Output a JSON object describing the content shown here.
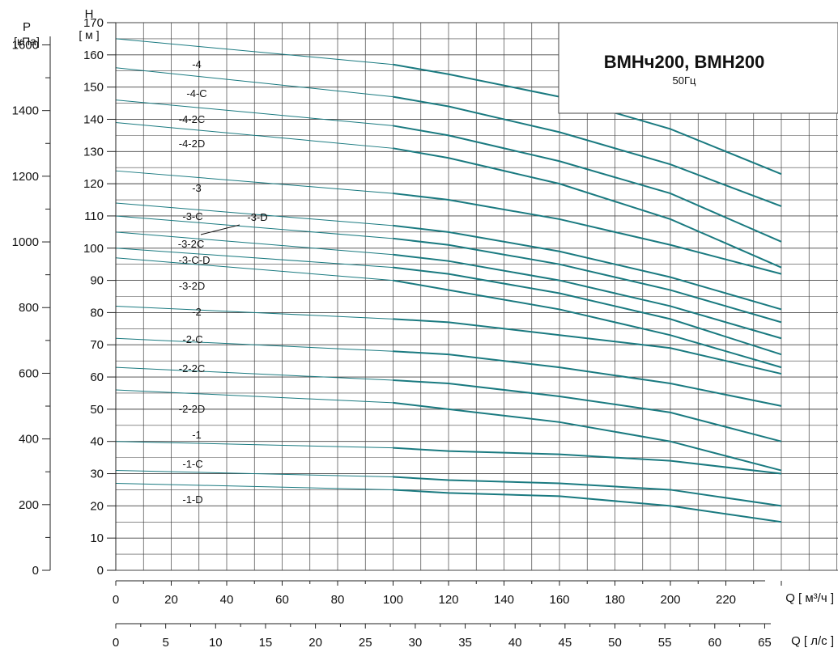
{
  "chart_data": {
    "type": "line",
    "title": "ВМНч200, ВМН200",
    "subtitle": "50Гц",
    "left_axis_symbol": "P",
    "left_axis_unit": "[кПа]",
    "y_axis_symbol": "H",
    "y_axis_unit": "[ м ]",
    "x_axis_symbol": "Q",
    "x_axis_unit": "м³/ч",
    "x2_axis_unit": "л/с",
    "x_axis_unit_text": "Q [ м³/ч ]",
    "x2_axis_unit_text": "Q [ л/с ]",
    "ylim": [
      0,
      170
    ],
    "xlim": [
      0,
      240
    ],
    "y_ticks": [
      "0",
      "10",
      "20",
      "30",
      "40",
      "50",
      "60",
      "70",
      "80",
      "90",
      "100",
      "110",
      "120",
      "130",
      "140",
      "150",
      "160",
      "170"
    ],
    "p_ticks": [
      "0",
      "200",
      "400",
      "600",
      "800",
      "1000",
      "1200",
      "1400",
      "1600"
    ],
    "x_ticks": [
      "0",
      "20",
      "40",
      "60",
      "80",
      "100",
      "120",
      "140",
      "160",
      "180",
      "200",
      "220"
    ],
    "x2_ticks": [
      "0",
      "5",
      "10",
      "15",
      "20",
      "25",
      "30",
      "35",
      "40",
      "45",
      "50",
      "55",
      "60",
      "65"
    ],
    "grid": true,
    "x": [
      0,
      100,
      120,
      160,
      200,
      240
    ],
    "series": [
      {
        "name": "-4",
        "values": [
          165,
          157,
          154,
          147,
          137,
          123
        ]
      },
      {
        "name": "-4-C",
        "values": [
          156,
          147,
          144,
          136,
          126,
          113
        ]
      },
      {
        "name": "-4-2C",
        "values": [
          146,
          138,
          135,
          127,
          117,
          102
        ]
      },
      {
        "name": "-4-2D",
        "values": [
          139,
          131,
          128,
          120,
          109,
          94
        ]
      },
      {
        "name": "-3",
        "values": [
          124,
          117,
          115,
          109,
          101,
          92
        ]
      },
      {
        "name": "-3-D",
        "values": [
          114,
          107,
          105,
          99,
          91,
          81
        ]
      },
      {
        "name": "-3-C",
        "values": [
          110,
          103,
          101,
          95,
          87,
          77
        ]
      },
      {
        "name": "-3-2C",
        "values": [
          105,
          98,
          96,
          90,
          82,
          72
        ]
      },
      {
        "name": "-3-C-D",
        "values": [
          100,
          94,
          92,
          86,
          78,
          67
        ]
      },
      {
        "name": "-3-2D",
        "values": [
          97,
          90,
          87,
          81,
          73,
          63
        ]
      },
      {
        "name": "-2",
        "values": [
          82,
          78,
          77,
          73,
          69,
          61
        ]
      },
      {
        "name": "-2-C",
        "values": [
          72,
          68,
          67,
          63,
          58,
          51
        ]
      },
      {
        "name": "-2-2C",
        "values": [
          63,
          59,
          58,
          54,
          49,
          40
        ]
      },
      {
        "name": "-2-2D",
        "values": [
          56,
          52,
          50,
          46,
          40,
          31
        ]
      },
      {
        "name": "-1",
        "values": [
          40,
          38,
          37,
          36,
          34,
          30
        ]
      },
      {
        "name": "-1-C",
        "values": [
          31,
          29,
          28,
          27,
          25,
          20
        ]
      },
      {
        "name": "-1-D",
        "values": [
          27,
          25,
          24,
          23,
          20,
          15
        ]
      }
    ]
  },
  "colors": {
    "curve": "#1a7a80",
    "grid": "#444444",
    "text": "#111111"
  }
}
